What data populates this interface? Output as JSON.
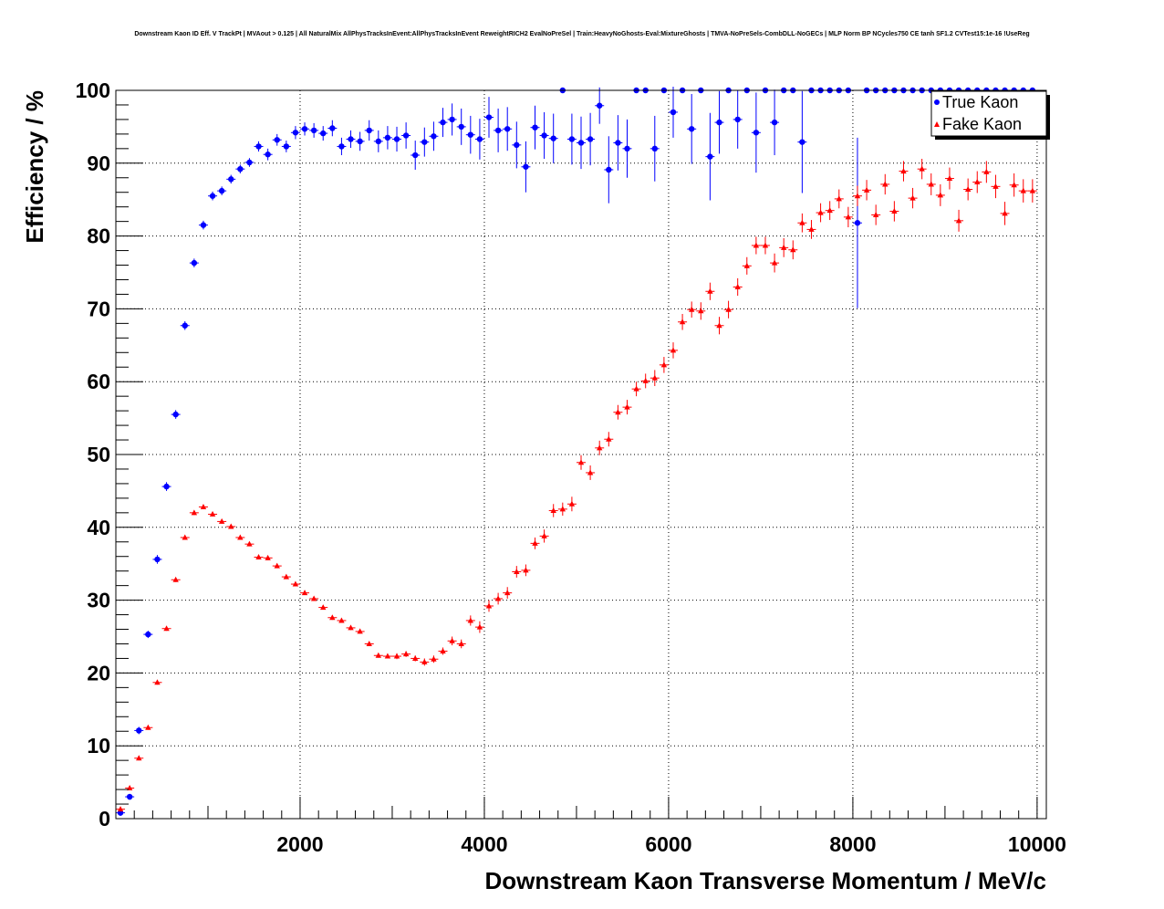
{
  "chart_data": {
    "type": "scatter",
    "title": "Downstream Kaon ID Eff. V TrackPt | MVAout > 0.125 | All NaturalMix AllPhysTracksInEvent:AllPhysTracksInEvent ReweightRICH2 EvalNoPreSel | Train:HeavyNoGhosts-Eval:MixtureGhosts | TMVA-NoPreSels-CombDLL-NoGECs | MLP Norm BP NCycles750 CE tanh SF1.2 CVTest15:1e-16 !UseReg",
    "xlabel": "Downstream Kaon Transverse Momentum / MeV/c",
    "ylabel": "Efficiency / %",
    "xlim": [
      0,
      10100
    ],
    "ylim": [
      0,
      100
    ],
    "x_ticks": [
      "2000",
      "4000",
      "6000",
      "8000",
      "10000"
    ],
    "y_ticks": [
      "0",
      "10",
      "20",
      "30",
      "40",
      "50",
      "60",
      "70",
      "80",
      "90",
      "100"
    ],
    "grid": true,
    "legend_position": "top-right",
    "series": [
      {
        "name": "True Kaon",
        "color": "#0000ff",
        "marker": "circle",
        "points": [
          [
            50,
            0.8,
            0.4
          ],
          [
            150,
            3.0,
            0.4
          ],
          [
            250,
            12.1,
            0.5
          ],
          [
            350,
            25.3,
            0.5
          ],
          [
            450,
            35.6,
            0.6
          ],
          [
            550,
            45.6,
            0.6
          ],
          [
            650,
            55.5,
            0.6
          ],
          [
            750,
            67.7,
            0.6
          ],
          [
            850,
            76.3,
            0.6
          ],
          [
            950,
            81.5,
            0.6
          ],
          [
            1050,
            85.5,
            0.6
          ],
          [
            1150,
            86.2,
            0.6
          ],
          [
            1250,
            87.8,
            0.6
          ],
          [
            1350,
            89.2,
            0.6
          ],
          [
            1450,
            90.1,
            0.6
          ],
          [
            1550,
            92.3,
            0.7
          ],
          [
            1650,
            91.2,
            0.8
          ],
          [
            1750,
            93.2,
            0.8
          ],
          [
            1850,
            92.3,
            0.8
          ],
          [
            1950,
            94.2,
            0.9
          ],
          [
            2050,
            94.7,
            0.9
          ],
          [
            2150,
            94.5,
            1.0
          ],
          [
            2250,
            94.1,
            1.0
          ],
          [
            2350,
            94.8,
            1.1
          ],
          [
            2450,
            92.3,
            1.2
          ],
          [
            2550,
            93.3,
            1.2
          ],
          [
            2650,
            93.0,
            1.3
          ],
          [
            2750,
            94.5,
            1.4
          ],
          [
            2850,
            93.0,
            1.5
          ],
          [
            2950,
            93.5,
            1.6
          ],
          [
            3050,
            93.3,
            1.7
          ],
          [
            3150,
            93.8,
            1.8
          ],
          [
            3250,
            91.1,
            2.0
          ],
          [
            3350,
            92.9,
            2.0
          ],
          [
            3450,
            93.7,
            2.0
          ],
          [
            3550,
            95.6,
            2.0
          ],
          [
            3650,
            96.0,
            2.2
          ],
          [
            3750,
            95.0,
            2.5
          ],
          [
            3850,
            93.9,
            2.6
          ],
          [
            3950,
            93.3,
            2.8
          ],
          [
            4050,
            96.3,
            2.8
          ],
          [
            4150,
            94.5,
            3.0
          ],
          [
            4250,
            94.7,
            3.0
          ],
          [
            4350,
            92.5,
            3.2
          ],
          [
            4450,
            89.5,
            3.5
          ],
          [
            4550,
            94.9,
            3.0
          ],
          [
            4650,
            93.8,
            3.2
          ],
          [
            4750,
            93.4,
            3.4
          ],
          [
            4850,
            100,
            0
          ],
          [
            4950,
            93.3,
            3.5
          ],
          [
            5050,
            92.8,
            3.6
          ],
          [
            5150,
            93.3,
            3.6
          ],
          [
            5250,
            97.9,
            2.5
          ],
          [
            5350,
            89.1,
            4.6
          ],
          [
            5450,
            92.8,
            3.8
          ],
          [
            5550,
            92.0,
            4.0
          ],
          [
            5650,
            100,
            0
          ],
          [
            5750,
            100,
            0
          ],
          [
            5850,
            92.0,
            4.5
          ],
          [
            5950,
            100,
            0
          ],
          [
            6050,
            97.0,
            3.5
          ],
          [
            6150,
            100,
            0
          ],
          [
            6250,
            94.7,
            4.8
          ],
          [
            6350,
            100,
            0
          ],
          [
            6450,
            90.9,
            6.0
          ],
          [
            6550,
            95.6,
            4.3
          ],
          [
            6650,
            100,
            0
          ],
          [
            6750,
            96.0,
            4.0
          ],
          [
            6850,
            100,
            0
          ],
          [
            6950,
            94.2,
            5.5
          ],
          [
            7050,
            100,
            0
          ],
          [
            7150,
            95.6,
            4.5
          ],
          [
            7250,
            100,
            0
          ],
          [
            7350,
            100,
            0
          ],
          [
            7450,
            92.9,
            7.0
          ],
          [
            7550,
            100,
            0
          ],
          [
            7650,
            100,
            0
          ],
          [
            7750,
            100,
            0
          ],
          [
            7850,
            100,
            0
          ],
          [
            7950,
            100,
            0
          ],
          [
            8050,
            81.8,
            11.7
          ],
          [
            8150,
            100,
            0
          ],
          [
            8250,
            100,
            0
          ],
          [
            8350,
            100,
            0
          ],
          [
            8450,
            100,
            0
          ],
          [
            8550,
            100,
            0
          ],
          [
            8650,
            100,
            0
          ],
          [
            8750,
            100,
            0
          ],
          [
            8850,
            100,
            0
          ],
          [
            8950,
            100,
            0
          ],
          [
            9050,
            100,
            0
          ],
          [
            9150,
            100,
            0
          ],
          [
            9250,
            100,
            0
          ],
          [
            9350,
            100,
            0
          ],
          [
            9450,
            100,
            0
          ],
          [
            9550,
            100,
            0
          ],
          [
            9650,
            100,
            0
          ],
          [
            9750,
            100,
            0
          ],
          [
            9850,
            100,
            0
          ],
          [
            9950,
            100,
            0
          ]
        ]
      },
      {
        "name": "Fake Kaon",
        "color": "#ff0000",
        "marker": "triangle",
        "points": [
          [
            50,
            1.3,
            0.3
          ],
          [
            150,
            4.2,
            0.3
          ],
          [
            250,
            8.3,
            0.3
          ],
          [
            350,
            12.5,
            0.3
          ],
          [
            450,
            18.7,
            0.3
          ],
          [
            550,
            26.1,
            0.3
          ],
          [
            650,
            32.8,
            0.3
          ],
          [
            750,
            38.6,
            0.3
          ],
          [
            850,
            42.0,
            0.3
          ],
          [
            950,
            42.8,
            0.3
          ],
          [
            1050,
            41.8,
            0.3
          ],
          [
            1150,
            40.8,
            0.3
          ],
          [
            1250,
            40.1,
            0.3
          ],
          [
            1350,
            38.6,
            0.3
          ],
          [
            1450,
            37.7,
            0.3
          ],
          [
            1550,
            35.9,
            0.3
          ],
          [
            1650,
            35.8,
            0.3
          ],
          [
            1750,
            34.7,
            0.3
          ],
          [
            1850,
            33.2,
            0.3
          ],
          [
            1950,
            32.2,
            0.3
          ],
          [
            2050,
            31.0,
            0.3
          ],
          [
            2150,
            30.2,
            0.3
          ],
          [
            2250,
            29.0,
            0.3
          ],
          [
            2350,
            27.6,
            0.3
          ],
          [
            2450,
            27.2,
            0.3
          ],
          [
            2550,
            26.2,
            0.3
          ],
          [
            2650,
            25.7,
            0.3
          ],
          [
            2750,
            24.0,
            0.3
          ],
          [
            2850,
            22.4,
            0.3
          ],
          [
            2950,
            22.3,
            0.3
          ],
          [
            3050,
            22.3,
            0.4
          ],
          [
            3150,
            22.6,
            0.4
          ],
          [
            3250,
            22.0,
            0.4
          ],
          [
            3350,
            21.5,
            0.5
          ],
          [
            3450,
            21.9,
            0.5
          ],
          [
            3550,
            23.0,
            0.5
          ],
          [
            3650,
            24.4,
            0.6
          ],
          [
            3750,
            24.0,
            0.6
          ],
          [
            3850,
            27.2,
            0.7
          ],
          [
            3950,
            26.3,
            0.8
          ],
          [
            4050,
            29.2,
            0.8
          ],
          [
            4150,
            30.2,
            0.8
          ],
          [
            4250,
            31.0,
            0.8
          ],
          [
            4350,
            33.9,
            0.8
          ],
          [
            4450,
            34.1,
            0.8
          ],
          [
            4550,
            37.8,
            0.8
          ],
          [
            4650,
            38.8,
            0.9
          ],
          [
            4750,
            42.3,
            0.9
          ],
          [
            4850,
            42.5,
            0.9
          ],
          [
            4950,
            43.2,
            1.0
          ],
          [
            5050,
            48.9,
            1.0
          ],
          [
            5150,
            47.5,
            1.0
          ],
          [
            5250,
            50.9,
            1.0
          ],
          [
            5350,
            52.1,
            1.0
          ],
          [
            5450,
            55.8,
            1.0
          ],
          [
            5550,
            56.5,
            1.0
          ],
          [
            5650,
            59.0,
            1.0
          ],
          [
            5750,
            60.1,
            1.0
          ],
          [
            5850,
            60.5,
            1.1
          ],
          [
            5950,
            62.3,
            1.1
          ],
          [
            6050,
            64.3,
            1.1
          ],
          [
            6150,
            68.2,
            1.1
          ],
          [
            6250,
            69.9,
            1.1
          ],
          [
            6350,
            69.7,
            1.2
          ],
          [
            6450,
            72.4,
            1.2
          ],
          [
            6550,
            67.7,
            1.2
          ],
          [
            6650,
            69.9,
            1.2
          ],
          [
            6750,
            73.0,
            1.2
          ],
          [
            6850,
            75.9,
            1.2
          ],
          [
            6950,
            78.7,
            1.2
          ],
          [
            7050,
            78.7,
            1.2
          ],
          [
            7150,
            76.3,
            1.3
          ],
          [
            7250,
            78.4,
            1.3
          ],
          [
            7350,
            78.1,
            1.3
          ],
          [
            7450,
            81.8,
            1.3
          ],
          [
            7550,
            80.9,
            1.3
          ],
          [
            7650,
            83.2,
            1.3
          ],
          [
            7750,
            83.5,
            1.3
          ],
          [
            7850,
            85.1,
            1.3
          ],
          [
            7950,
            82.6,
            1.4
          ],
          [
            8050,
            85.5,
            1.4
          ],
          [
            8150,
            86.3,
            1.4
          ],
          [
            8250,
            82.9,
            1.4
          ],
          [
            8350,
            87.1,
            1.4
          ],
          [
            8450,
            83.4,
            1.4
          ],
          [
            8550,
            88.9,
            1.4
          ],
          [
            8650,
            85.2,
            1.4
          ],
          [
            8750,
            89.2,
            1.4
          ],
          [
            8850,
            87.1,
            1.5
          ],
          [
            8950,
            85.6,
            1.5
          ],
          [
            9050,
            87.9,
            1.5
          ],
          [
            9150,
            82.1,
            1.5
          ],
          [
            9250,
            86.4,
            1.5
          ],
          [
            9350,
            87.4,
            1.5
          ],
          [
            9450,
            88.8,
            1.5
          ],
          [
            9550,
            86.8,
            1.6
          ],
          [
            9650,
            83.1,
            1.6
          ],
          [
            9750,
            87.0,
            1.6
          ],
          [
            9850,
            86.2,
            1.6
          ],
          [
            9950,
            86.2,
            1.6
          ]
        ]
      }
    ]
  }
}
